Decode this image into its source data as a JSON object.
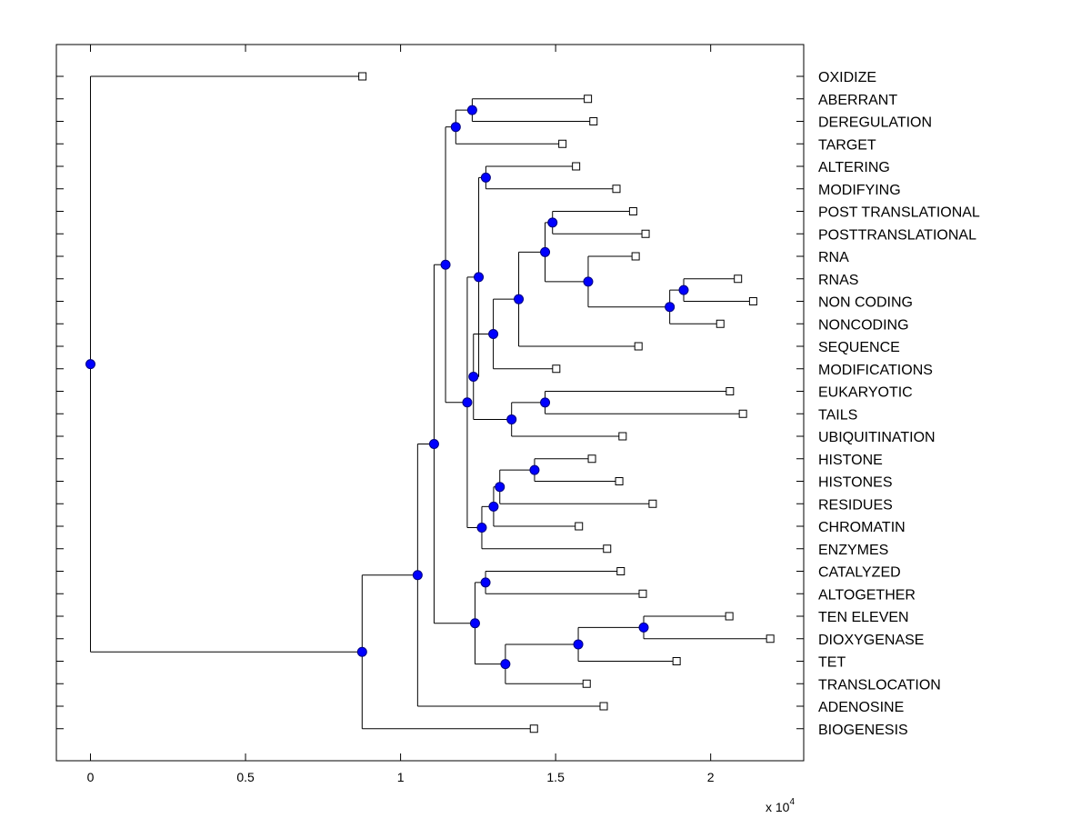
{
  "chart_data": {
    "type": "dendrogram",
    "orientation": "horizontal",
    "title": "",
    "xlabel": "",
    "ylabel": "",
    "x_multiplier_label": "x 10",
    "x_multiplier_exponent": "4",
    "xlim": [
      -0.11,
      2.3
    ],
    "xticks": [
      0,
      0.5,
      1,
      1.5,
      2
    ],
    "xtick_labels": [
      "0",
      "0.5",
      "1",
      "1.5",
      "2"
    ],
    "colors": {
      "node_fill": "#0000ff",
      "node_stroke": "#000080",
      "line": "#000000",
      "leaf_fill": "#ffffff"
    },
    "leaves": [
      {
        "label": "OXIDIZE",
        "x": 0.877
      },
      {
        "label": "ABERRANT",
        "x": 1.604
      },
      {
        "label": "DEREGULATION",
        "x": 1.622
      },
      {
        "label": "TARGET",
        "x": 1.522
      },
      {
        "label": "ALTERING",
        "x": 1.566
      },
      {
        "label": "MODIFYING",
        "x": 1.696
      },
      {
        "label": "POST TRANSLATIONAL",
        "x": 1.75
      },
      {
        "label": "POSTTRANSLATIONAL",
        "x": 1.79
      },
      {
        "label": "RNA",
        "x": 1.758
      },
      {
        "label": "RNAS",
        "x": 2.088
      },
      {
        "label": "NON CODING",
        "x": 2.137
      },
      {
        "label": "NONCODING",
        "x": 2.031
      },
      {
        "label": "SEQUENCE",
        "x": 1.767
      },
      {
        "label": "MODIFICATIONS",
        "x": 1.502
      },
      {
        "label": "EUKARYOTIC",
        "x": 2.062
      },
      {
        "label": "TAILS",
        "x": 2.104
      },
      {
        "label": "UBIQUITINATION",
        "x": 1.716
      },
      {
        "label": "HISTONE",
        "x": 1.617
      },
      {
        "label": "HISTONES",
        "x": 1.705
      },
      {
        "label": "RESIDUES",
        "x": 1.813
      },
      {
        "label": "CHROMATIN",
        "x": 1.575
      },
      {
        "label": "ENZYMES",
        "x": 1.666
      },
      {
        "label": "CATALYZED",
        "x": 1.71
      },
      {
        "label": "ALTOGETHER",
        "x": 1.781
      },
      {
        "label": "TEN ELEVEN",
        "x": 2.06
      },
      {
        "label": "DIOXYGENASE",
        "x": 2.192
      },
      {
        "label": "TET",
        "x": 1.89
      },
      {
        "label": "TRANSLOCATION",
        "x": 1.6
      },
      {
        "label": "ADENOSINE",
        "x": 1.655
      },
      {
        "label": "BIOGENESIS",
        "x": 1.43
      }
    ],
    "nodes": [
      {
        "id": "n1",
        "x": 1.231,
        "children": [
          "L1",
          "L2"
        ]
      },
      {
        "id": "n2",
        "x": 1.178,
        "children": [
          "n1",
          "L3"
        ]
      },
      {
        "id": "n3",
        "x": 1.275,
        "children": [
          "L4",
          "L5"
        ]
      },
      {
        "id": "n4",
        "x": 1.49,
        "children": [
          "L6",
          "L7"
        ]
      },
      {
        "id": "n5",
        "x": 1.913,
        "children": [
          "L9",
          "L10"
        ]
      },
      {
        "id": "n6",
        "x": 1.868,
        "children": [
          "n5",
          "L11"
        ]
      },
      {
        "id": "n7",
        "x": 1.605,
        "children": [
          "L8",
          "n6"
        ]
      },
      {
        "id": "n8",
        "x": 1.466,
        "children": [
          "n4",
          "n7"
        ]
      },
      {
        "id": "n9",
        "x": 1.381,
        "children": [
          "n8",
          "L12"
        ]
      },
      {
        "id": "n10",
        "x": 1.299,
        "children": [
          "n9",
          "L13"
        ]
      },
      {
        "id": "n11",
        "x": 1.466,
        "children": [
          "L14",
          "L15"
        ]
      },
      {
        "id": "n12",
        "x": 1.358,
        "children": [
          "n11",
          "L16"
        ]
      },
      {
        "id": "n13",
        "x": 1.235,
        "children": [
          "n10",
          "n12"
        ]
      },
      {
        "id": "n14",
        "x": 1.252,
        "children": [
          "n3",
          "n13"
        ]
      },
      {
        "id": "n15",
        "x": 1.432,
        "children": [
          "L17",
          "L18"
        ]
      },
      {
        "id": "n16",
        "x": 1.32,
        "children": [
          "n15",
          "L19"
        ]
      },
      {
        "id": "n17",
        "x": 1.3,
        "children": [
          "n16",
          "L20"
        ]
      },
      {
        "id": "n18",
        "x": 1.262,
        "children": [
          "n17",
          "L21"
        ]
      },
      {
        "id": "n19",
        "x": 1.215,
        "children": [
          "n14",
          "n18"
        ]
      },
      {
        "id": "n20",
        "x": 1.145,
        "children": [
          "n2",
          "n19"
        ]
      },
      {
        "id": "n21",
        "x": 1.274,
        "children": [
          "L22",
          "L23"
        ]
      },
      {
        "id": "n22",
        "x": 1.784,
        "children": [
          "L24",
          "L25"
        ]
      },
      {
        "id": "n23",
        "x": 1.573,
        "children": [
          "n22",
          "L26"
        ]
      },
      {
        "id": "n24",
        "x": 1.338,
        "children": [
          "n23",
          "L27"
        ]
      },
      {
        "id": "n25",
        "x": 1.24,
        "children": [
          "n21",
          "n24"
        ]
      },
      {
        "id": "n26",
        "x": 1.108,
        "children": [
          "n20",
          "n25"
        ]
      },
      {
        "id": "n27",
        "x": 1.055,
        "children": [
          "n26",
          "L28"
        ]
      },
      {
        "id": "n28",
        "x": 0.876,
        "children": [
          "n27",
          "L29"
        ]
      },
      {
        "id": "n29",
        "x": 0.0,
        "children": [
          "L0",
          "n28"
        ]
      }
    ]
  }
}
